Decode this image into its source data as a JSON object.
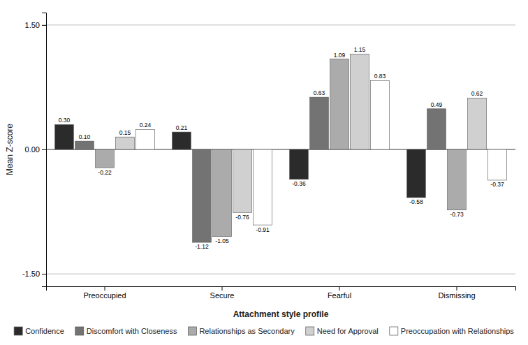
{
  "chart_data": {
    "type": "bar",
    "categories": [
      "Preoccupied",
      "Secure",
      "Fearful",
      "Dismissing"
    ],
    "series": [
      {
        "name": "Confidence",
        "color": "#2b2b2b",
        "values": [
          0.3,
          0.21,
          -0.36,
          -0.58
        ],
        "value_labels": [
          "0.30",
          "0.21",
          "-0.36",
          "-0.58"
        ]
      },
      {
        "name": "Discomfort with Closeness",
        "color": "#737373",
        "values": [
          0.1,
          -1.12,
          0.63,
          0.49
        ],
        "value_labels": [
          "0.10",
          "-1.12",
          "0.63",
          "0.49"
        ]
      },
      {
        "name": "Relationships as Secondary",
        "color": "#ababab",
        "values": [
          -0.22,
          -1.05,
          1.09,
          -0.73
        ],
        "value_labels": [
          "-0.22",
          "-1.05",
          "1.09",
          "-0.73"
        ]
      },
      {
        "name": "Need for Approval",
        "color": "#d0d0d0",
        "values": [
          0.15,
          -0.76,
          1.15,
          0.62
        ],
        "value_labels": [
          "0.15",
          "-0.76",
          "1.15",
          "0.62"
        ]
      },
      {
        "name": "Preoccupation with Relationships",
        "color": "#ffffff",
        "values": [
          0.24,
          -0.91,
          0.83,
          -0.37
        ],
        "value_labels": [
          "0.24",
          "-0.91",
          "0.83",
          "-0.37"
        ]
      }
    ],
    "xlabel": "Attachment style profile",
    "ylabel": "Mean Z-score",
    "ylim": [
      -1.65,
      1.65
    ],
    "yticks": [
      {
        "value": -1.5,
        "label": "-1.50"
      },
      {
        "value": 0.0,
        "label": "0.00"
      },
      {
        "value": 1.5,
        "label": "1.50"
      }
    ],
    "grid": true,
    "legend": "bottom",
    "data_labels": true
  }
}
